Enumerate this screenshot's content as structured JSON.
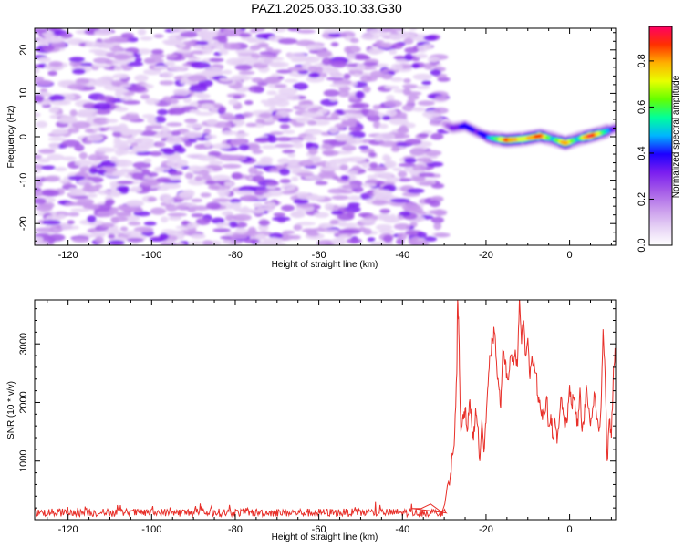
{
  "title": "PAZ1.2025.033.10.33.G30",
  "colors": {
    "spectrum": [
      "#ffffff",
      "#e6d2f5",
      "#c898ec",
      "#a45ae8",
      "#7a1ef0",
      "#1c00ff",
      "#00b4ff",
      "#00ff9c",
      "#64ff00",
      "#e8ff00",
      "#ffb000",
      "#ff3000",
      "#ff0064"
    ],
    "snr_line": "#e8302a"
  },
  "chart_data": [
    {
      "type": "heatmap",
      "xlabel": "Height of straight line (km)",
      "ylabel": "Frequency (Hz)",
      "xlim": [
        -128,
        11
      ],
      "ylim": [
        -25,
        25
      ],
      "xticks": [
        -120,
        -100,
        -80,
        -60,
        -40,
        -20,
        0
      ],
      "yticks": [
        -20,
        -10,
        0,
        10,
        20
      ],
      "noise_region": [
        -128,
        -30
      ],
      "signal_track": {
        "x": [
          -30,
          -28,
          -25,
          -22,
          -19,
          -15,
          -11,
          -7,
          -4,
          -1,
          2,
          5,
          8,
          11
        ],
        "frequency": [
          3,
          2,
          2.5,
          1,
          -0.3,
          -0.8,
          -0.5,
          0.2,
          -0.5,
          -1.5,
          -0.5,
          0.2,
          1,
          2
        ],
        "peak_amplitude": [
          0.15,
          0.3,
          0.4,
          0.35,
          0.45,
          0.85,
          0.7,
          0.9,
          0.5,
          0.85,
          0.5,
          0.95,
          0.6,
          0.3
        ]
      }
    },
    {
      "type": "colorbar",
      "label": "Normalized spectral amplitude",
      "range": [
        0,
        0.95
      ],
      "ticks": [
        "0.0",
        "0.2",
        "0.4",
        "0.6",
        "0.8"
      ],
      "tick_values": [
        0,
        0.2,
        0.4,
        0.6,
        0.8
      ]
    },
    {
      "type": "line",
      "series": [
        {
          "x": [
            -128,
            -40,
            -31,
            -29.5,
            -28.5,
            -28,
            -27.5,
            -27,
            -26.8,
            -26.5,
            -26.2,
            -26,
            -25.5,
            -25,
            -24.5,
            -24,
            -23.5,
            -23,
            -22.5,
            -22,
            -21.5,
            -21,
            -20.5,
            -20,
            -19.5,
            -19,
            -18.5,
            -18,
            -17.5,
            -17,
            -16.5,
            -16,
            -15.5,
            -15,
            -14.5,
            -14,
            -13.5,
            -13,
            -12.5,
            -12,
            -11.5,
            -11,
            -10.5,
            -10,
            -9.5,
            -9,
            -8.5,
            -8,
            -7.5,
            -7,
            -6.5,
            -6,
            -5.5,
            -5,
            -4.5,
            -4,
            -3.5,
            -3,
            -2.5,
            -2,
            -1.5,
            -1,
            -0.5,
            0,
            0.5,
            1,
            1.5,
            2,
            2.5,
            3,
            3.5,
            4,
            4.5,
            5,
            5.5,
            6,
            6.5,
            7,
            7.5,
            8,
            8.5,
            9,
            9.5,
            10,
            10.5,
            11
          ],
          "y": [
            120,
            120,
            150,
            450,
            800,
            1100,
            1500,
            2500,
            3750,
            3200,
            2000,
            1500,
            1800,
            1900,
            1500,
            2000,
            1700,
            1350,
            1900,
            1600,
            1000,
            1700,
            1150,
            1650,
            2300,
            2800,
            3050,
            3200,
            2700,
            2300,
            1900,
            2900,
            2650,
            2500,
            2500,
            2800,
            2700,
            2900,
            2600,
            3800,
            3000,
            3400,
            2800,
            3100,
            2400,
            2800,
            2700,
            2500,
            2000,
            1900,
            1700,
            1800,
            2100,
            1600,
            1800,
            1400,
            1700,
            1300,
            1650,
            2100,
            1800,
            1600,
            1700,
            2300,
            1950,
            2100,
            1800,
            1600,
            2250,
            1500,
            1700,
            2300,
            1900,
            1600,
            1900,
            2150,
            1700,
            1500,
            1900,
            3250,
            2500,
            1000,
            1700,
            1400,
            2600,
            2900
          ]
        }
      ],
      "xlabel": "Height of straight line (km)",
      "ylabel": "SNR (10 * v/v)",
      "xlim": [
        -128,
        11
      ],
      "ylim": [
        0,
        3750
      ],
      "xticks": [
        -120,
        -100,
        -80,
        -60,
        -40,
        -20,
        0
      ],
      "yticks": [
        1000,
        2000,
        3000
      ]
    }
  ]
}
